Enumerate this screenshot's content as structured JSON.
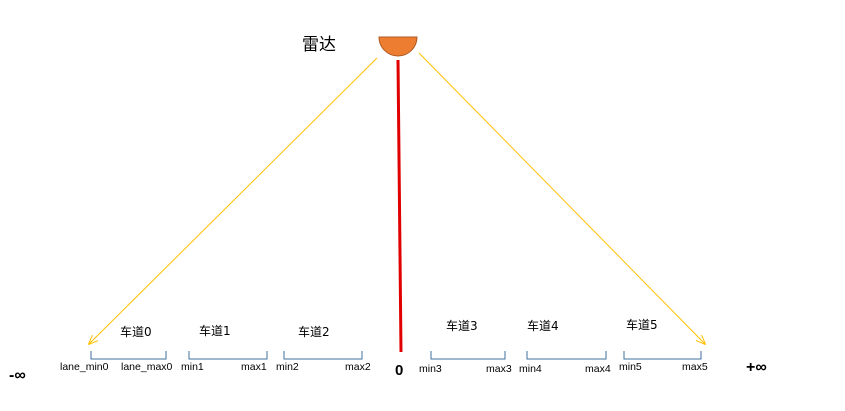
{
  "radar_label": "雷达",
  "center_label": "0",
  "neg_inf_label": "-∞",
  "pos_inf_label": "+∞",
  "lanes": [
    {
      "name": "车道0",
      "min": "lane_min0",
      "max": "lane_max0"
    },
    {
      "name": "车道1",
      "min": "min1",
      "max": "max1"
    },
    {
      "name": "车道2",
      "min": "min2",
      "max": "max2"
    },
    {
      "name": "车道3",
      "min": "min3",
      "max": "max3"
    },
    {
      "name": "车道4",
      "min": "min4",
      "max": "max4"
    },
    {
      "name": "车道5",
      "min": "min5",
      "max": "max5"
    }
  ],
  "colors": {
    "radar_fill": "#ED7D31",
    "radar_stroke": "#AE5A21",
    "center_line": "#E00000",
    "beam_lines": "#FFC000",
    "lane_brackets": "#41719C"
  }
}
